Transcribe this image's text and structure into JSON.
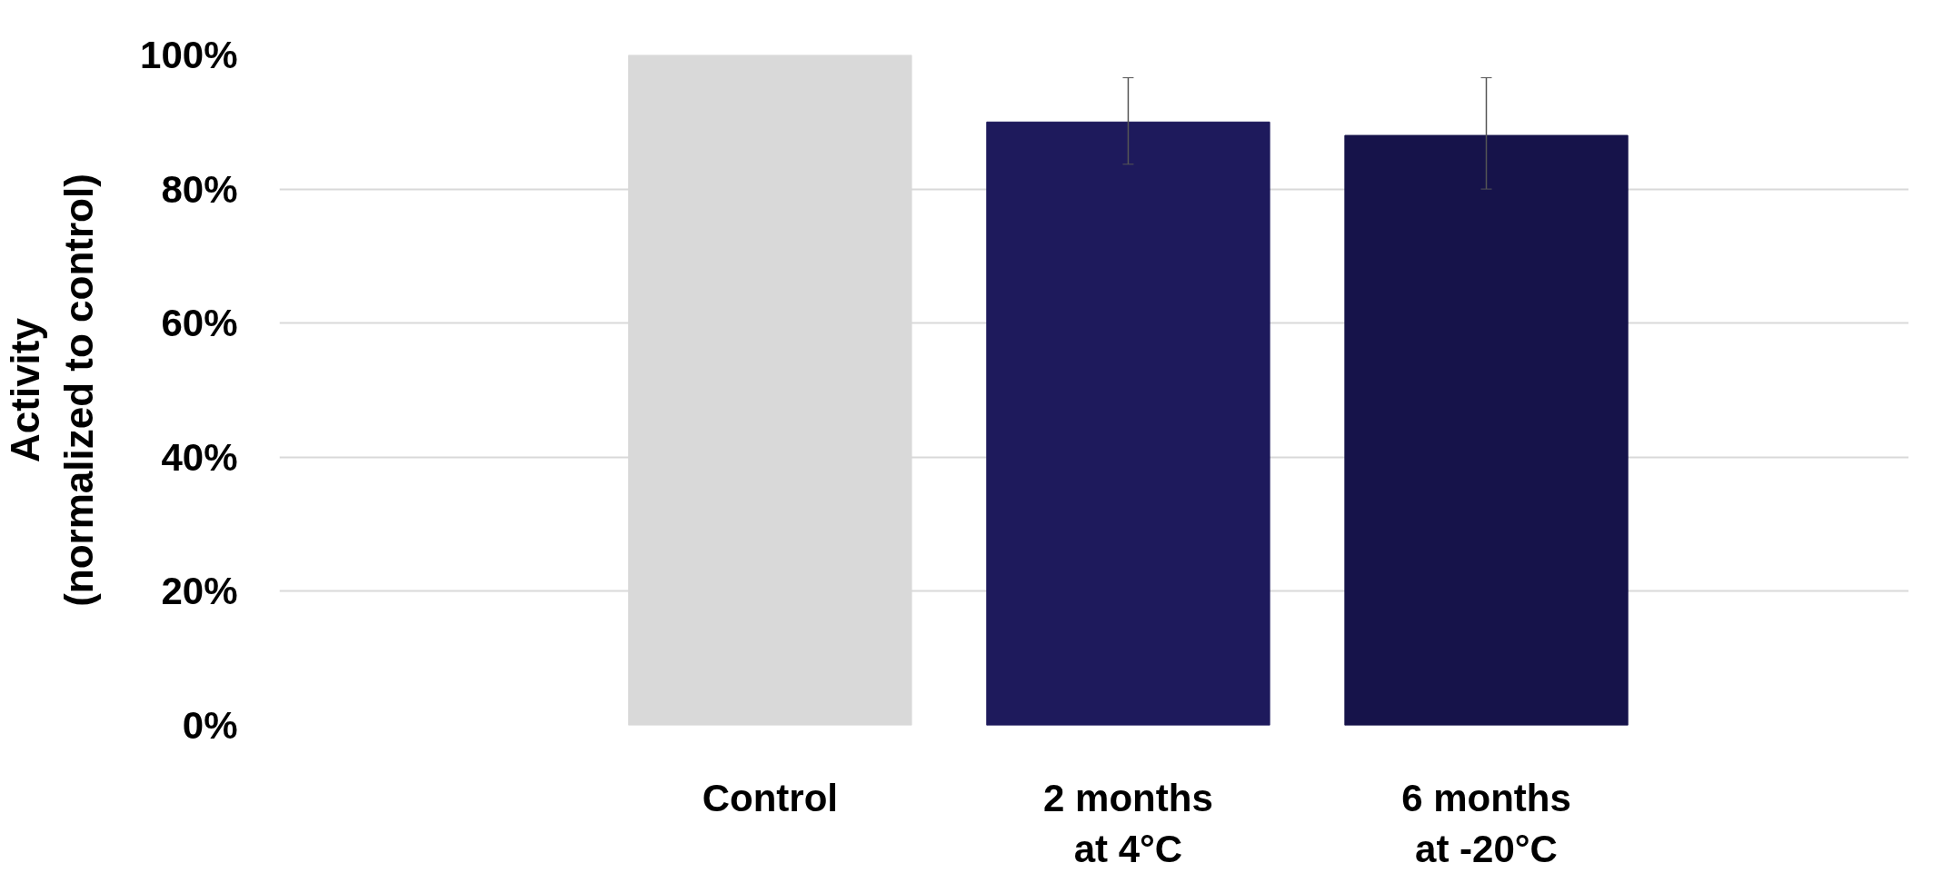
{
  "chart_data": {
    "type": "bar",
    "ylabel": "Activity\n(normalized to control)",
    "categories": [
      "Control",
      "2 months at 4°C",
      "6 months at -20°C"
    ],
    "values": [
      100,
      90,
      88
    ],
    "colors": [
      "#d9d9d9",
      "#1e1a5c",
      "#16134a"
    ],
    "errors": [
      null,
      [
        83.7,
        96.6
      ],
      [
        80,
        96.6
      ]
    ],
    "ylim": [
      0,
      100
    ],
    "yticks": [
      {
        "value": 0,
        "label": "0%"
      },
      {
        "value": 20,
        "label": "20%"
      },
      {
        "value": 40,
        "label": "40%"
      },
      {
        "value": 60,
        "label": "60%"
      },
      {
        "value": 80,
        "label": "80%"
      },
      {
        "value": 100,
        "label": "100%"
      }
    ],
    "grid": "y"
  }
}
